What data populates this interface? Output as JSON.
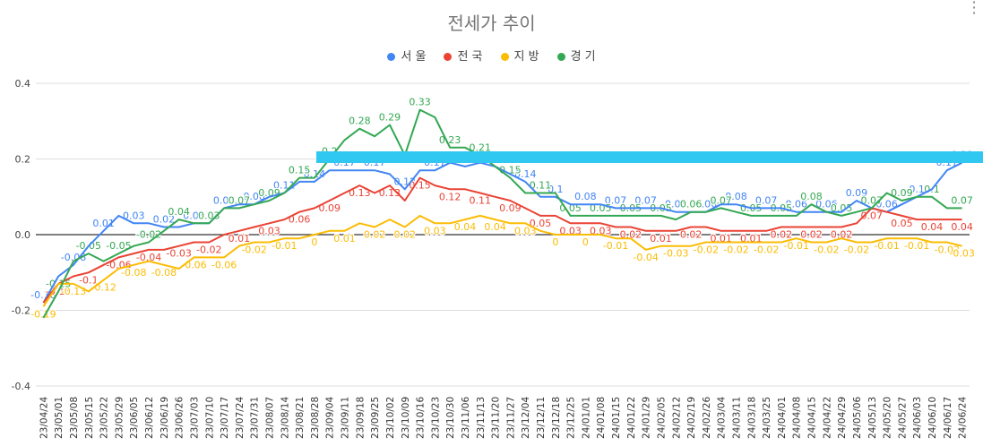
{
  "colors": {
    "서울": "#4285f4",
    "전국": "#ea4335",
    "지방": "#fbbc04",
    "경기": "#34a853",
    "highlight": "#30c8f0"
  },
  "chart_data": {
    "type": "line",
    "title": "전세가 추이",
    "legend_position": "top",
    "ylim": [
      -0.4,
      0.4
    ],
    "y_ticks": [
      "0.4",
      "0.2",
      "0.0",
      "-0.2",
      "-0.4"
    ],
    "grid": true,
    "x": [
      "23/04/24",
      "23/05/01",
      "23/05/08",
      "23/05/15",
      "23/05/22",
      "23/05/29",
      "23/06/05",
      "23/06/12",
      "23/06/19",
      "23/06/26",
      "23/07/03",
      "23/07/10",
      "23/07/17",
      "23/07/24",
      "23/07/31",
      "23/08/07",
      "23/08/14",
      "23/08/21",
      "23/08/28",
      "23/09/04",
      "23/09/11",
      "23/09/18",
      "23/09/25",
      "23/10/02",
      "23/10/09",
      "23/10/16",
      "23/10/23",
      "23/10/30",
      "23/11/06",
      "23/11/13",
      "23/11/20",
      "23/11/27",
      "23/12/04",
      "23/12/11",
      "23/12/18",
      "23/12/25",
      "24/01/01",
      "24/01/08",
      "24/01/15",
      "24/01/22",
      "24/01/29",
      "24/02/05",
      "24/02/12",
      "24/02/19",
      "24/02/26",
      "24/03/04",
      "24/03/11",
      "24/03/18",
      "24/03/25",
      "24/04/01",
      "24/04/08",
      "24/04/15",
      "24/04/22",
      "24/04/29",
      "24/05/06",
      "24/05/13",
      "24/05/20",
      "24/05/27",
      "24/06/03",
      "24/06/10",
      "24/06/17",
      "24/06/24"
    ],
    "series": [
      {
        "name": "서울",
        "values": [
          -0.18,
          -0.11,
          -0.08,
          -0.03,
          0.01,
          0.05,
          0.03,
          0.03,
          0.02,
          0.02,
          0.03,
          0.03,
          0.07,
          0.08,
          0.08,
          0.1,
          0.11,
          0.14,
          0.14,
          0.17,
          0.17,
          0.17,
          0.17,
          0.16,
          0.12,
          0.17,
          0.17,
          0.19,
          0.18,
          0.19,
          0.18,
          0.16,
          0.14,
          0.1,
          0.1,
          0.08,
          0.08,
          0.08,
          0.07,
          0.07,
          0.07,
          0.07,
          0.06,
          0.06,
          0.06,
          0.08,
          0.08,
          0.07,
          0.07,
          0.07,
          0.06,
          0.06,
          0.06,
          0.06,
          0.09,
          0.07,
          0.06,
          0.08,
          0.1,
          0.12,
          0.17,
          0.19
        ]
      },
      {
        "name": "전국",
        "values": [
          -0.18,
          -0.13,
          -0.11,
          -0.1,
          -0.08,
          -0.06,
          -0.05,
          -0.04,
          -0.04,
          -0.03,
          -0.02,
          -0.02,
          0.0,
          0.01,
          0.02,
          0.03,
          0.04,
          0.06,
          0.07,
          0.09,
          0.11,
          0.13,
          0.11,
          0.13,
          0.09,
          0.15,
          0.13,
          0.12,
          0.12,
          0.11,
          0.1,
          0.09,
          0.07,
          0.05,
          0.05,
          0.03,
          0.03,
          0.03,
          0.02,
          0.02,
          0.01,
          0.01,
          0.01,
          0.02,
          0.02,
          0.01,
          0.01,
          0.01,
          0.01,
          0.02,
          0.02,
          0.02,
          0.02,
          0.02,
          0.03,
          0.07,
          0.06,
          0.05,
          0.04,
          0.04,
          0.04,
          0.04
        ]
      },
      {
        "name": "지방",
        "values": [
          -0.19,
          -0.13,
          -0.13,
          -0.15,
          -0.12,
          -0.09,
          -0.08,
          -0.07,
          -0.08,
          -0.09,
          -0.06,
          -0.06,
          -0.06,
          -0.03,
          -0.02,
          -0.02,
          -0.01,
          -0.01,
          0.0,
          0.01,
          0.01,
          0.03,
          0.02,
          0.04,
          0.02,
          0.05,
          0.03,
          0.03,
          0.04,
          0.05,
          0.04,
          0.03,
          0.03,
          0.01,
          0.0,
          0.0,
          0.0,
          0.0,
          -0.01,
          -0.01,
          -0.04,
          -0.03,
          -0.03,
          -0.03,
          -0.02,
          -0.02,
          -0.02,
          -0.02,
          -0.02,
          -0.02,
          -0.01,
          -0.02,
          -0.02,
          -0.01,
          -0.02,
          -0.02,
          -0.01,
          -0.01,
          -0.01,
          -0.02,
          -0.02,
          -0.03
        ]
      },
      {
        "name": "경기",
        "values": [
          -0.22,
          -0.15,
          -0.07,
          -0.05,
          -0.07,
          -0.05,
          -0.03,
          -0.02,
          0.01,
          0.04,
          0.03,
          0.03,
          0.07,
          0.07,
          0.08,
          0.09,
          0.11,
          0.15,
          0.15,
          0.2,
          0.25,
          0.28,
          0.26,
          0.29,
          0.21,
          0.33,
          0.31,
          0.23,
          0.23,
          0.21,
          0.18,
          0.15,
          0.11,
          0.11,
          0.11,
          0.05,
          0.05,
          0.05,
          0.05,
          0.05,
          0.05,
          0.05,
          0.04,
          0.06,
          0.06,
          0.07,
          0.06,
          0.05,
          0.05,
          0.05,
          0.05,
          0.08,
          0.06,
          0.05,
          0.06,
          0.07,
          0.11,
          0.09,
          0.1,
          0.1,
          0.07,
          0.07
        ]
      }
    ]
  }
}
